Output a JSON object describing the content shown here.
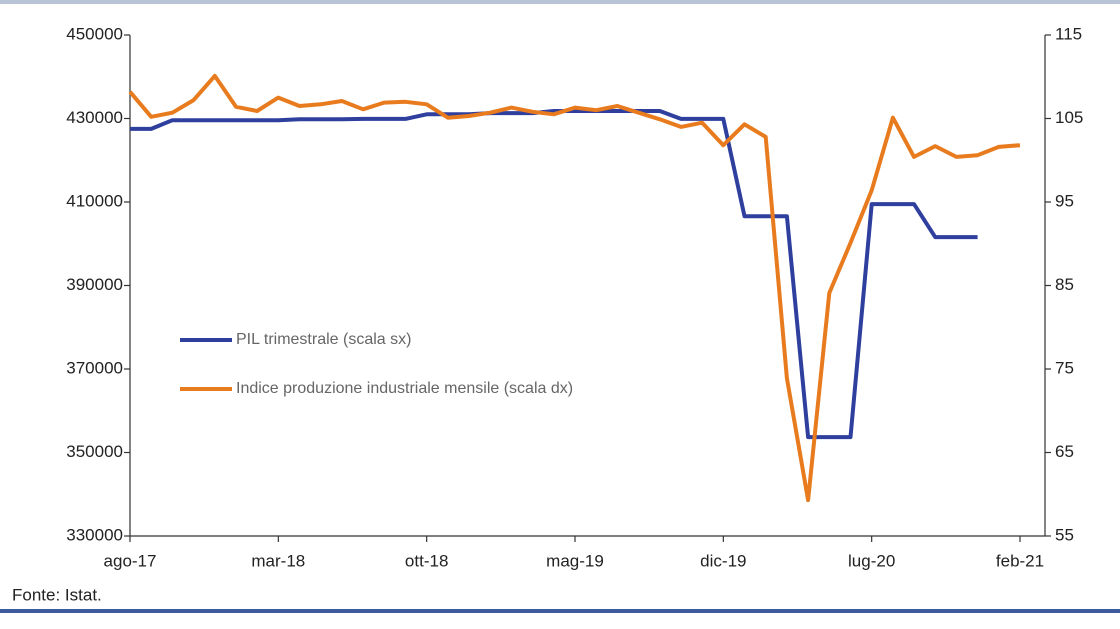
{
  "chart_data": {
    "type": "line",
    "categories": [
      "ago-17",
      null,
      null,
      null,
      null,
      null,
      null,
      "mar-18",
      null,
      null,
      null,
      null,
      null,
      null,
      "ott-18",
      null,
      null,
      null,
      null,
      null,
      null,
      "mag-19",
      null,
      null,
      null,
      null,
      null,
      null,
      "dic-19",
      null,
      null,
      null,
      null,
      null,
      null,
      "lug-20",
      null,
      null,
      null,
      null,
      null,
      null,
      "feb-21"
    ],
    "series": [
      {
        "name": "PIL trimestrale (scala sx)",
        "color": "#2e3f9e",
        "axis": "y",
        "values": [
          427500,
          427500,
          429600,
          429600,
          429600,
          429600,
          429600,
          429600,
          429800,
          429800,
          429800,
          429900,
          429900,
          429900,
          431000,
          431000,
          431000,
          431300,
          431300,
          431300,
          431800,
          431800,
          431800,
          431800,
          431800,
          431800,
          429900,
          429900,
          429900,
          406600,
          406600,
          406600,
          353700,
          353700,
          353700,
          409500,
          409500,
          409500,
          401600,
          401600,
          401600,
          null,
          null
        ]
      },
      {
        "name": "Indice produzione industriale mensile (scala dx)",
        "color": "#e87b1e",
        "axis": "y2",
        "values": [
          108.2,
          105.2,
          105.7,
          107.2,
          110.1,
          106.4,
          105.9,
          107.5,
          106.5,
          106.7,
          107.1,
          106.1,
          106.9,
          107.0,
          106.7,
          105.1,
          105.3,
          105.7,
          106.3,
          105.8,
          105.5,
          106.3,
          106.0,
          106.5,
          105.7,
          104.9,
          104.0,
          104.5,
          101.8,
          104.3,
          102.8,
          73.9,
          59.3,
          84.1,
          90.1,
          96.4,
          105.1,
          100.4,
          101.7,
          100.4,
          100.6,
          101.6,
          101.8
        ]
      }
    ],
    "ylim": [
      330000,
      450000
    ],
    "yticks": [
      330000,
      350000,
      370000,
      390000,
      410000,
      430000,
      450000
    ],
    "y2lim": [
      55,
      115
    ],
    "y2ticks": [
      55,
      65,
      75,
      85,
      95,
      105,
      115
    ],
    "source": "Fonte: Istat."
  }
}
